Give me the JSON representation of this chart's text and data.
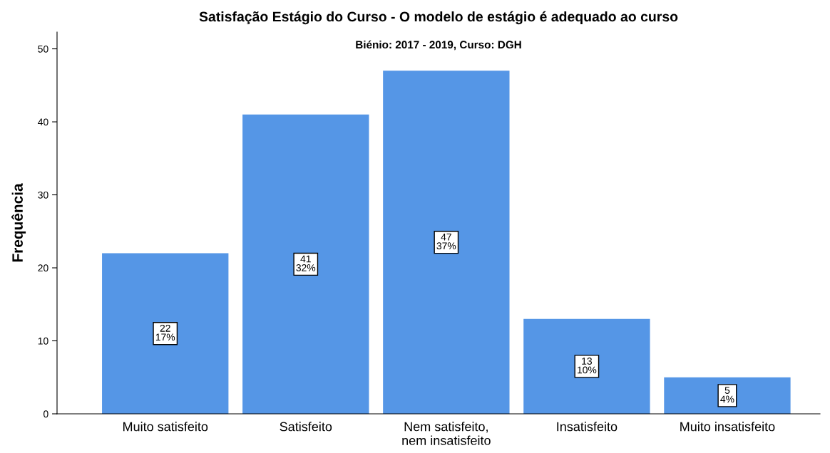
{
  "chart_data": {
    "type": "bar",
    "title": "Satisfação Estágio do Curso - O modelo de estágio é adequado ao curso",
    "subtitle": "Biénio: 2017 - 2019, Curso: DGH",
    "ylabel": "Frequência",
    "categories": [
      "Muito satisfeito",
      "Satisfeito",
      "Nem satisfeito,\nnem insatisfeito",
      "Insatisfeito",
      "Muito insatisfeito"
    ],
    "values": [
      22,
      41,
      47,
      13,
      5
    ],
    "value_labels": [
      "22\n17%",
      "41\n32%",
      "47\n37%",
      "13\n10%",
      "5\n4%"
    ],
    "color": "#5596e6",
    "ylim": [
      0,
      52.3
    ],
    "yticks": [
      0,
      10,
      20,
      30,
      40,
      50
    ],
    "grid": false,
    "legend": false
  }
}
